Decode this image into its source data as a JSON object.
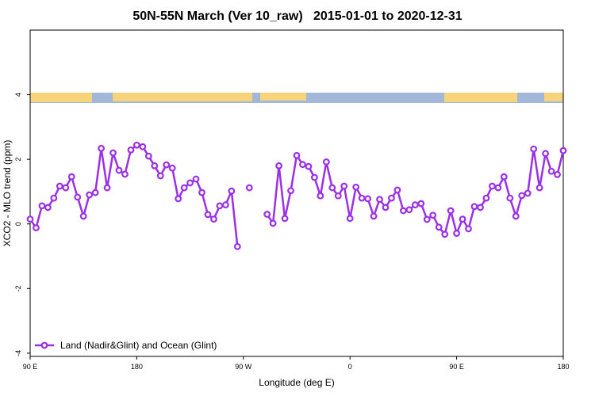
{
  "chart_data": {
    "type": "line",
    "title": "50N-55N March (Ver 10_raw)   2015-01-01 to 2020-12-31",
    "x_label": "Longitude (deg E)",
    "y_label": "XCO2 - MLO trend (ppm)",
    "x": [
      90,
      95,
      100,
      105,
      110,
      115,
      120,
      125,
      130,
      135,
      140,
      145,
      150,
      155,
      160,
      165,
      170,
      175,
      180,
      185,
      190,
      195,
      200,
      205,
      210,
      215,
      220,
      225,
      230,
      235,
      240,
      245,
      250,
      255,
      260,
      265,
      270,
      275,
      280,
      285,
      290,
      295,
      300,
      305,
      310,
      315,
      320,
      325,
      330,
      335,
      340,
      345,
      350,
      355,
      360,
      365,
      370,
      375,
      380,
      385,
      390,
      395,
      400,
      405,
      410,
      415,
      420,
      425,
      430,
      435,
      440,
      445,
      450,
      455,
      460,
      465,
      470,
      475,
      480,
      485,
      490,
      495,
      500,
      505,
      510,
      515,
      520,
      525,
      530,
      535,
      540
    ],
    "series": [
      {
        "name": "Land (Nadir&Glint) and Ocean (Glint)",
        "color": "#9b30e6",
        "values": [
          0.15,
          -0.12,
          0.56,
          0.51,
          0.8,
          1.17,
          1.12,
          1.46,
          0.83,
          0.24,
          0.9,
          0.97,
          2.34,
          1.12,
          2.2,
          1.66,
          1.54,
          2.29,
          2.44,
          2.39,
          2.1,
          1.8,
          1.49,
          1.83,
          1.73,
          0.78,
          1.12,
          1.27,
          1.39,
          0.97,
          0.29,
          0.15,
          0.56,
          0.59,
          1.02,
          -0.7,
          null,
          1.12,
          null,
          null,
          0.3,
          0.02,
          1.8,
          0.17,
          1.03,
          2.12,
          1.84,
          1.78,
          1.44,
          0.87,
          1.92,
          1.12,
          0.87,
          1.17,
          0.17,
          1.14,
          0.8,
          0.78,
          0.24,
          0.76,
          0.51,
          0.8,
          1.05,
          0.41,
          0.44,
          0.59,
          0.63,
          0.14,
          0.27,
          -0.1,
          -0.32,
          0.41,
          -0.29,
          0.15,
          -0.15,
          0.54,
          0.51,
          0.8,
          1.17,
          1.12,
          1.46,
          0.8,
          0.24,
          0.88,
          0.95,
          2.32,
          1.12,
          2.18,
          1.63,
          1.53,
          2.27
        ]
      }
    ],
    "xlim": [
      90,
      540
    ],
    "xticks": [
      {
        "value": 90,
        "label": "90 E"
      },
      {
        "value": 180,
        "label": "180"
      },
      {
        "value": 270,
        "label": "90 W"
      },
      {
        "value": 360,
        "label": "0"
      },
      {
        "value": 450,
        "label": "90 E"
      },
      {
        "value": 540,
        "label": "180"
      }
    ],
    "ylim": [
      -4.1,
      6
    ],
    "yticks": [
      -4,
      -2,
      0,
      2,
      4
    ],
    "legend": "bottom-left"
  }
}
